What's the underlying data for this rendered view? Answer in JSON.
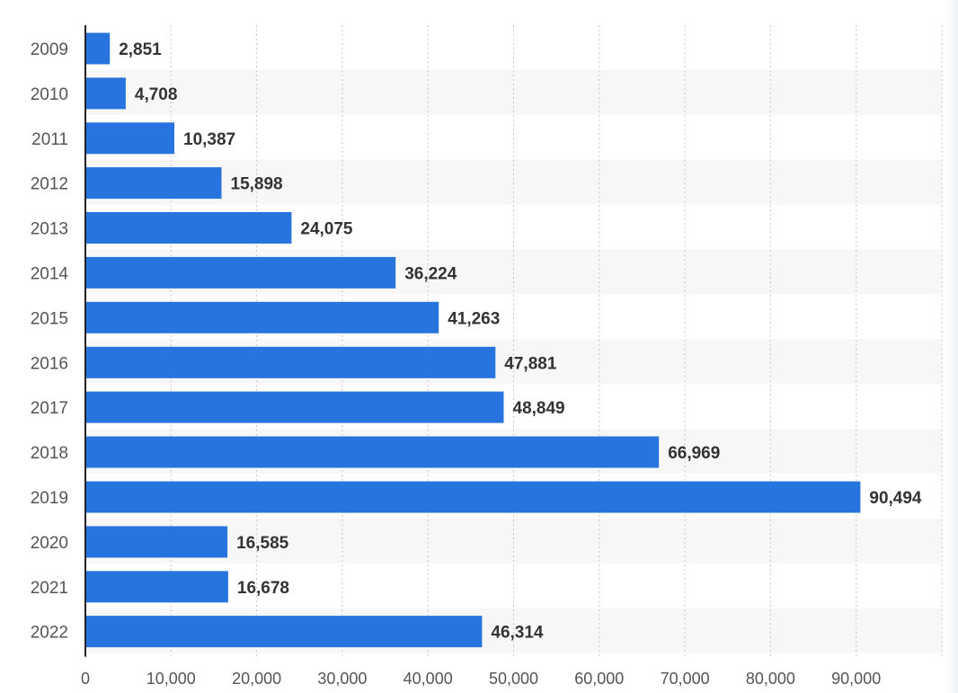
{
  "chart_data": {
    "type": "bar",
    "orientation": "horizontal",
    "title": "",
    "xlabel": "",
    "ylabel": "",
    "categories": [
      "2009",
      "2010",
      "2011",
      "2012",
      "2013",
      "2014",
      "2015",
      "2016",
      "2017",
      "2018",
      "2019",
      "2020",
      "2021",
      "2022"
    ],
    "values": [
      2851,
      4708,
      10387,
      15898,
      24075,
      36224,
      41263,
      47881,
      48849,
      66969,
      90494,
      16585,
      16678,
      46314
    ],
    "value_labels": [
      "2,851",
      "4,708",
      "10,387",
      "15,898",
      "24,075",
      "36,224",
      "41,263",
      "47,881",
      "48,849",
      "66,969",
      "90,494",
      "16,585",
      "16,678",
      "46,314"
    ],
    "xlim": [
      0,
      100000
    ],
    "x_ticks": [
      0,
      10000,
      20000,
      30000,
      40000,
      50000,
      60000,
      70000,
      80000,
      90000
    ],
    "x_tick_labels": [
      "0",
      "10,000",
      "20,000",
      "30,000",
      "40,000",
      "50,000",
      "60,000",
      "70,000",
      "80,000",
      "90,000"
    ],
    "grid": true,
    "legend": "none",
    "colors": {
      "bar": "#2874df",
      "label": "#333333",
      "tick": "#555555",
      "grid": "#c9c9c9",
      "stripe": "#f7f7f7",
      "axis": "#222222"
    }
  }
}
